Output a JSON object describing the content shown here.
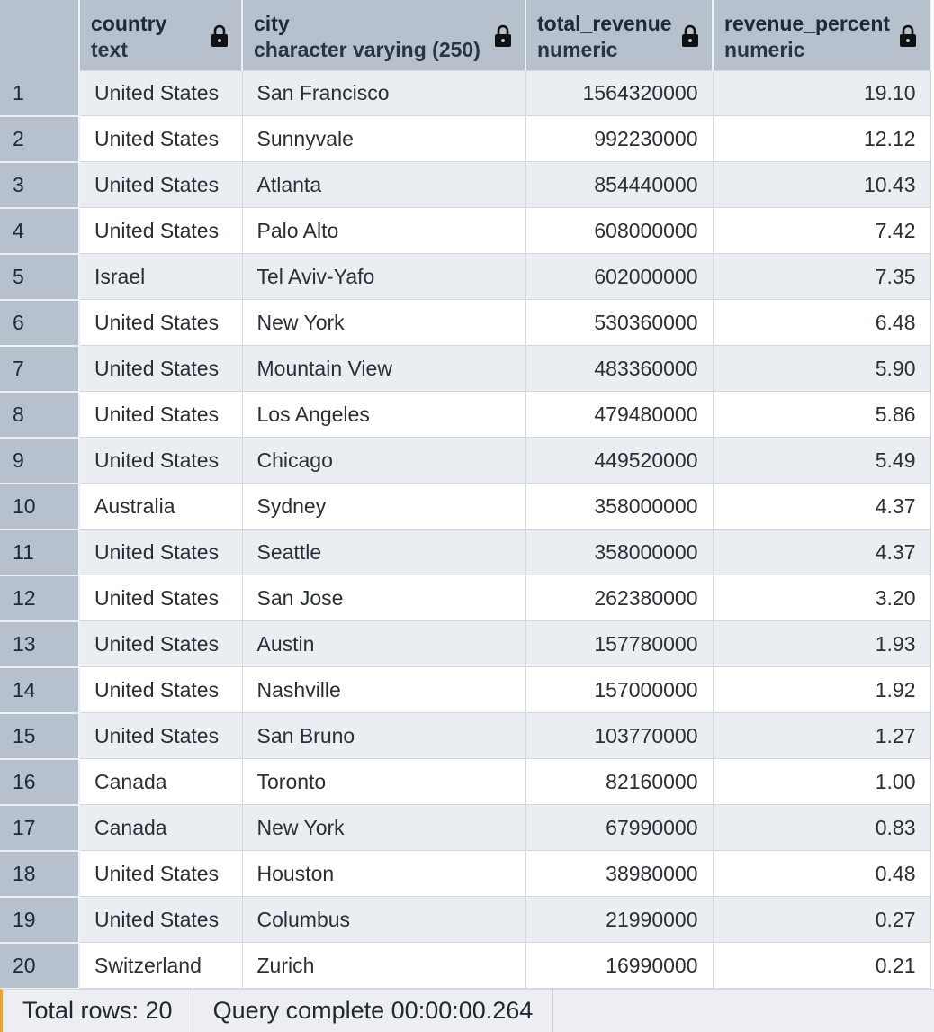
{
  "columns": [
    {
      "name": "country",
      "type": "text"
    },
    {
      "name": "city",
      "type": "character varying (250)"
    },
    {
      "name": "total_revenue",
      "type": "numeric"
    },
    {
      "name": "revenue_percent",
      "type": "numeric"
    }
  ],
  "rows": [
    {
      "num": "1",
      "country": "United States",
      "city": "San Francisco",
      "total_revenue": "1564320000",
      "revenue_percent": "19.10"
    },
    {
      "num": "2",
      "country": "United States",
      "city": "Sunnyvale",
      "total_revenue": "992230000",
      "revenue_percent": "12.12"
    },
    {
      "num": "3",
      "country": "United States",
      "city": "Atlanta",
      "total_revenue": "854440000",
      "revenue_percent": "10.43"
    },
    {
      "num": "4",
      "country": "United States",
      "city": "Palo Alto",
      "total_revenue": "608000000",
      "revenue_percent": "7.42"
    },
    {
      "num": "5",
      "country": "Israel",
      "city": "Tel Aviv-Yafo",
      "total_revenue": "602000000",
      "revenue_percent": "7.35"
    },
    {
      "num": "6",
      "country": "United States",
      "city": "New York",
      "total_revenue": "530360000",
      "revenue_percent": "6.48"
    },
    {
      "num": "7",
      "country": "United States",
      "city": "Mountain View",
      "total_revenue": "483360000",
      "revenue_percent": "5.90"
    },
    {
      "num": "8",
      "country": "United States",
      "city": "Los Angeles",
      "total_revenue": "479480000",
      "revenue_percent": "5.86"
    },
    {
      "num": "9",
      "country": "United States",
      "city": "Chicago",
      "total_revenue": "449520000",
      "revenue_percent": "5.49"
    },
    {
      "num": "10",
      "country": "Australia",
      "city": "Sydney",
      "total_revenue": "358000000",
      "revenue_percent": "4.37"
    },
    {
      "num": "11",
      "country": "United States",
      "city": "Seattle",
      "total_revenue": "358000000",
      "revenue_percent": "4.37"
    },
    {
      "num": "12",
      "country": "United States",
      "city": "San Jose",
      "total_revenue": "262380000",
      "revenue_percent": "3.20"
    },
    {
      "num": "13",
      "country": "United States",
      "city": "Austin",
      "total_revenue": "157780000",
      "revenue_percent": "1.93"
    },
    {
      "num": "14",
      "country": "United States",
      "city": "Nashville",
      "total_revenue": "157000000",
      "revenue_percent": "1.92"
    },
    {
      "num": "15",
      "country": "United States",
      "city": "San Bruno",
      "total_revenue": "103770000",
      "revenue_percent": "1.27"
    },
    {
      "num": "16",
      "country": "Canada",
      "city": "Toronto",
      "total_revenue": "82160000",
      "revenue_percent": "1.00"
    },
    {
      "num": "17",
      "country": "Canada",
      "city": "New York",
      "total_revenue": "67990000",
      "revenue_percent": "0.83"
    },
    {
      "num": "18",
      "country": "United States",
      "city": "Houston",
      "total_revenue": "38980000",
      "revenue_percent": "0.48"
    },
    {
      "num": "19",
      "country": "United States",
      "city": "Columbus",
      "total_revenue": "21990000",
      "revenue_percent": "0.27"
    },
    {
      "num": "20",
      "country": "Switzerland",
      "city": "Zurich",
      "total_revenue": "16990000",
      "revenue_percent": "0.21"
    }
  ],
  "status": {
    "total_rows": "Total rows: 20",
    "query_status": "Query complete 00:00:00.264"
  },
  "icons": {
    "column_lock": "lock-icon"
  },
  "colors": {
    "header_bg": "#b7c0cd",
    "stripe_row": "#eaedf1",
    "status_accent": "#e8a33d"
  }
}
